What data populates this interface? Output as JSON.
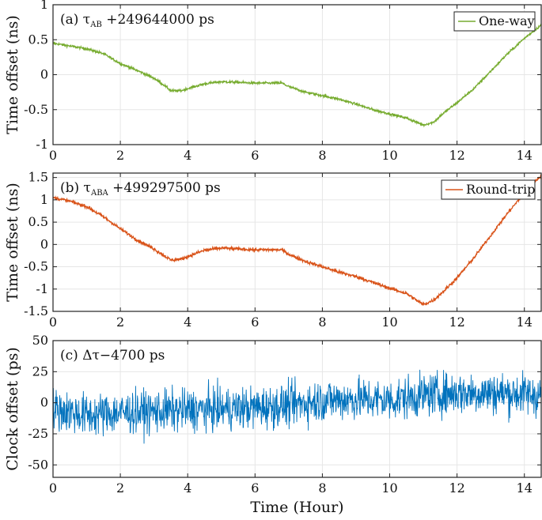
{
  "chart_data": [
    {
      "type": "line",
      "annotation": "(a) τ",
      "annotation_sub": "AB",
      "annotation_tail": " +249644000 ps",
      "ylabel": "Time offset (ns)",
      "xlabel": "",
      "xlim": [
        0,
        14.5
      ],
      "ylim": [
        -1,
        1
      ],
      "xticks": [
        0,
        2,
        4,
        6,
        8,
        10,
        12,
        14
      ],
      "xtick_labels": [
        "0",
        "2",
        "4",
        "6",
        "8",
        "10",
        "12",
        "14"
      ],
      "yticks": [
        -1,
        -0.5,
        0,
        0.5,
        1
      ],
      "ytick_labels": [
        "-1",
        "-0.5",
        "0",
        "0.5",
        "1"
      ],
      "grid": true,
      "legend_position": "top-right",
      "series": [
        {
          "name": "One-way",
          "color": "#77ac30",
          "noise": 0.012,
          "x": [
            0,
            0.5,
            1,
            1.5,
            2,
            2.5,
            3,
            3.3,
            3.5,
            3.8,
            4,
            4.5,
            5,
            5.5,
            6,
            6.5,
            6.8,
            7,
            7.5,
            8,
            8.5,
            9,
            9.5,
            10,
            10.5,
            11,
            11.3,
            11.6,
            12,
            12.5,
            13,
            13.5,
            14,
            14.5
          ],
          "y": [
            0.45,
            0.41,
            0.37,
            0.3,
            0.16,
            0.06,
            -0.05,
            -0.15,
            -0.23,
            -0.23,
            -0.2,
            -0.13,
            -0.1,
            -0.11,
            -0.12,
            -0.12,
            -0.12,
            -0.17,
            -0.25,
            -0.3,
            -0.35,
            -0.42,
            -0.5,
            -0.56,
            -0.62,
            -0.72,
            -0.68,
            -0.55,
            -0.4,
            -0.2,
            0.05,
            0.3,
            0.52,
            0.71
          ]
        }
      ]
    },
    {
      "type": "line",
      "annotation": "(b) τ",
      "annotation_sub": "ABA",
      "annotation_tail": " +499297500 ps",
      "ylabel": "Time offset (ns)",
      "xlabel": "",
      "xlim": [
        0,
        14.5
      ],
      "ylim": [
        -1.5,
        1.6
      ],
      "xticks": [
        0,
        2,
        4,
        6,
        8,
        10,
        12,
        14
      ],
      "xtick_labels": [
        "0",
        "2",
        "4",
        "6",
        "8",
        "10",
        "12",
        "14"
      ],
      "yticks": [
        -1.5,
        -1,
        -0.5,
        0,
        0.5,
        1,
        1.5
      ],
      "ytick_labels": [
        "-1.5",
        "-1",
        "-0.5",
        "0",
        "0.5",
        "1",
        "1.5"
      ],
      "grid": true,
      "legend_position": "top-right",
      "series": [
        {
          "name": "Round-trip",
          "color": "#d95319",
          "noise": 0.025,
          "x": [
            0,
            0.5,
            1,
            1.5,
            2,
            2.5,
            3,
            3.3,
            3.5,
            3.8,
            4,
            4.5,
            5,
            5.5,
            6,
            6.5,
            6.8,
            7,
            7.5,
            8,
            8.5,
            9,
            9.5,
            10,
            10.5,
            11,
            11.3,
            11.6,
            12,
            12.5,
            13,
            13.5,
            14,
            14.5
          ],
          "y": [
            1.05,
            0.97,
            0.85,
            0.62,
            0.35,
            0.1,
            -0.1,
            -0.25,
            -0.35,
            -0.33,
            -0.27,
            -0.13,
            -0.08,
            -0.1,
            -0.12,
            -0.12,
            -0.12,
            -0.22,
            -0.38,
            -0.5,
            -0.62,
            -0.72,
            -0.85,
            -0.98,
            -1.1,
            -1.35,
            -1.25,
            -1.05,
            -0.75,
            -0.3,
            0.2,
            0.7,
            1.15,
            1.55
          ]
        }
      ]
    },
    {
      "type": "line",
      "annotation": "(c) Δτ−4700 ps",
      "ylabel": "Clock offset (ps)",
      "xlabel": "Time (Hour)",
      "xlim": [
        0,
        14.5
      ],
      "ylim": [
        -60,
        50
      ],
      "xticks": [
        0,
        2,
        4,
        6,
        8,
        10,
        12,
        14
      ],
      "xtick_labels": [
        "0",
        "2",
        "4",
        "6",
        "8",
        "10",
        "12",
        "14"
      ],
      "yticks": [
        -50,
        -25,
        0,
        25,
        50
      ],
      "ytick_labels": [
        "-50",
        "-25",
        "0",
        "25",
        "50"
      ],
      "grid": true,
      "series": [
        {
          "name": "",
          "color": "#0072bd",
          "noise": 12,
          "x": [
            0,
            1,
            2,
            3,
            4,
            5,
            6,
            7,
            8,
            9,
            10,
            11,
            12,
            13,
            14,
            14.5
          ],
          "y": [
            -5,
            -10,
            -8,
            -7,
            -6,
            -5,
            -4,
            -2,
            2,
            3,
            2,
            6,
            8,
            8,
            7,
            6
          ]
        }
      ]
    }
  ]
}
